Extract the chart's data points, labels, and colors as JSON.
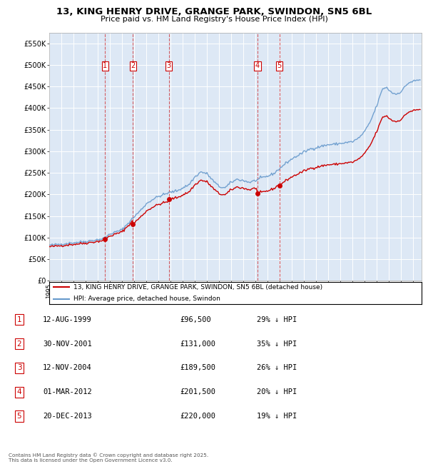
{
  "title": "13, KING HENRY DRIVE, GRANGE PARK, SWINDON, SN5 6BL",
  "subtitle": "Price paid vs. HM Land Registry's House Price Index (HPI)",
  "legend_line1": "13, KING HENRY DRIVE, GRANGE PARK, SWINDON, SN5 6BL (detached house)",
  "legend_line2": "HPI: Average price, detached house, Swindon",
  "footer": "Contains HM Land Registry data © Crown copyright and database right 2025.\nThis data is licensed under the Open Government Licence v3.0.",
  "sale_color": "#cc0000",
  "hpi_color": "#6699cc",
  "background_color": "#dde8f5",
  "sale_dates_num": [
    1999.61,
    2001.91,
    2004.86,
    2012.16,
    2013.97
  ],
  "sale_prices": [
    96500,
    131000,
    189500,
    201500,
    220000
  ],
  "sale_labels": [
    "1",
    "2",
    "3",
    "4",
    "5"
  ],
  "sale_table": [
    [
      "1",
      "12-AUG-1999",
      "£96,500",
      "29% ↓ HPI"
    ],
    [
      "2",
      "30-NOV-2001",
      "£131,000",
      "35% ↓ HPI"
    ],
    [
      "3",
      "12-NOV-2004",
      "£189,500",
      "26% ↓ HPI"
    ],
    [
      "4",
      "01-MAR-2012",
      "£201,500",
      "20% ↓ HPI"
    ],
    [
      "5",
      "20-DEC-2013",
      "£220,000",
      "19% ↓ HPI"
    ]
  ],
  "ylim": [
    0,
    575000
  ],
  "xlim_start": 1995.0,
  "xlim_end": 2025.7,
  "yticks": [
    0,
    50000,
    100000,
    150000,
    200000,
    250000,
    300000,
    350000,
    400000,
    450000,
    500000,
    550000
  ],
  "ytick_labels": [
    "£0",
    "£50K",
    "£100K",
    "£150K",
    "£200K",
    "£250K",
    "£300K",
    "£350K",
    "£400K",
    "£450K",
    "£500K",
    "£550K"
  ]
}
